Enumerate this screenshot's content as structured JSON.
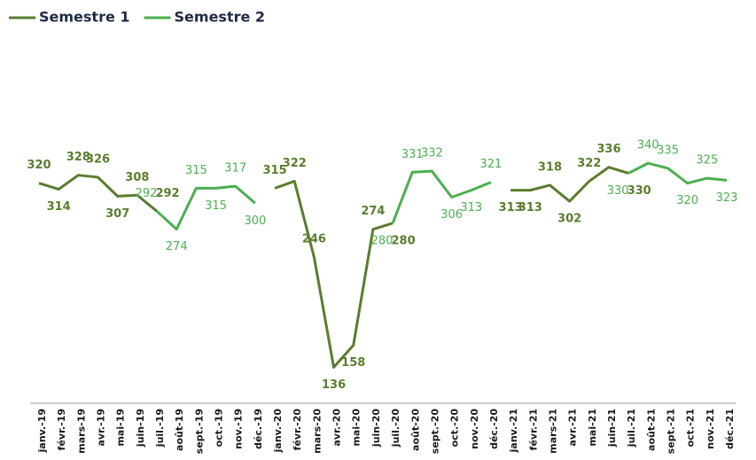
{
  "chart_data": {
    "type": "line",
    "categories": [
      "janv.-19",
      "févr.-19",
      "mars-19",
      "avr.-19",
      "mai-19",
      "juin-19",
      "juil.-19",
      "août-19",
      "sept.-19",
      "oct.-19",
      "nov.-19",
      "déc.-19",
      "janv.-20",
      "févr.-20",
      "mars-20",
      "avr.-20",
      "mai-20",
      "juin-20",
      "juil.-20",
      "août-20",
      "sept.-20",
      "oct.-20",
      "nov.-20",
      "déc.-20",
      "janv.-21",
      "févr.-21",
      "mars-21",
      "avr.-21",
      "mai-21",
      "juin-21",
      "juil.-21",
      "août-21",
      "sept.-21",
      "oct.-21",
      "nov.-21",
      "déc.-21"
    ],
    "series": [
      {
        "name": "Semestre 1",
        "color": "#5a7d2e",
        "values": [
          320,
          314,
          328,
          326,
          307,
          308,
          292,
          null,
          null,
          null,
          null,
          null,
          315,
          322,
          246,
          136,
          158,
          274,
          280,
          null,
          null,
          null,
          null,
          null,
          313,
          313,
          318,
          302,
          322,
          336,
          330,
          null,
          null,
          null,
          null,
          null
        ]
      },
      {
        "name": "Semestre 2",
        "color": "#4caf50",
        "values": [
          null,
          null,
          null,
          null,
          null,
          null,
          292,
          274,
          315,
          315,
          317,
          300,
          null,
          null,
          null,
          null,
          null,
          null,
          280,
          331,
          332,
          306,
          313,
          321,
          null,
          null,
          null,
          null,
          null,
          null,
          330,
          340,
          335,
          320,
          325,
          323
        ]
      }
    ],
    "ylim": [
      100,
      450
    ],
    "legend": "top-left"
  }
}
